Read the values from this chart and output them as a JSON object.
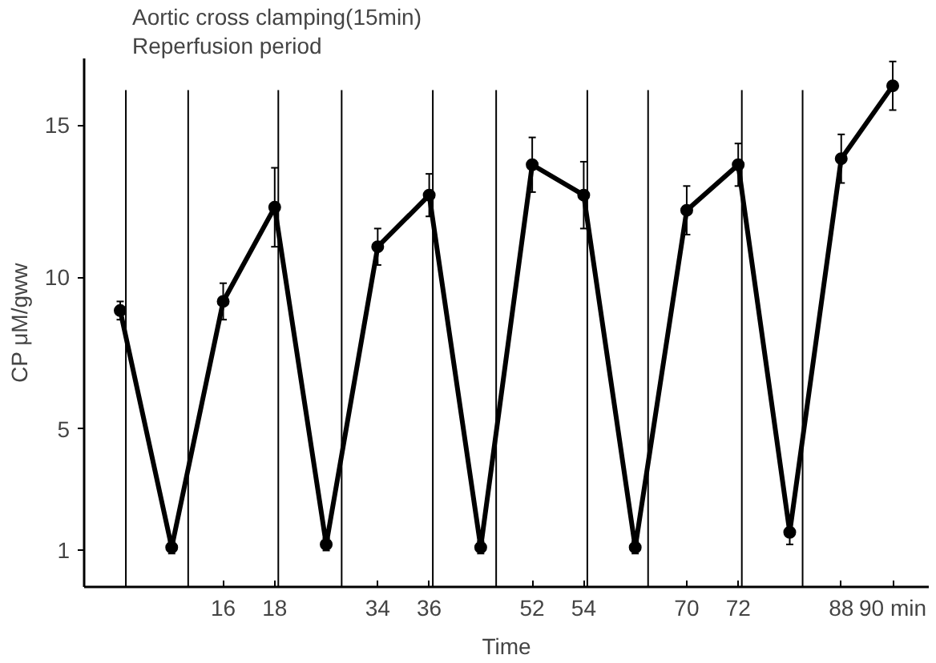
{
  "chart_data": {
    "type": "line",
    "xlabel": "Time",
    "ylabel": "CP μM/gww",
    "categories": [
      null,
      null,
      "16",
      "18",
      null,
      "34",
      "36",
      null,
      "52",
      "54",
      null,
      "70",
      "72",
      null,
      "88",
      "90 min"
    ],
    "series": [
      {
        "color": "#000000",
        "values": [
          8.9,
          1.1,
          9.2,
          12.3,
          1.2,
          11.0,
          12.7,
          1.1,
          13.7,
          12.7,
          1.1,
          12.2,
          13.7,
          1.6,
          13.9,
          16.3
        ],
        "errors": [
          0.3,
          0.2,
          0.6,
          1.3,
          0.2,
          0.6,
          0.7,
          0.2,
          0.9,
          1.1,
          0.2,
          0.8,
          0.7,
          0.4,
          0.8,
          0.8
        ]
      }
    ],
    "ylim": [
      -0.2,
      17.2
    ],
    "yticks": [
      1,
      5,
      10,
      15
    ],
    "marker": "circle",
    "line_style": "solid",
    "annotations": [
      "Aortic cross clamping(15min)",
      "Reperfusion period"
    ]
  }
}
